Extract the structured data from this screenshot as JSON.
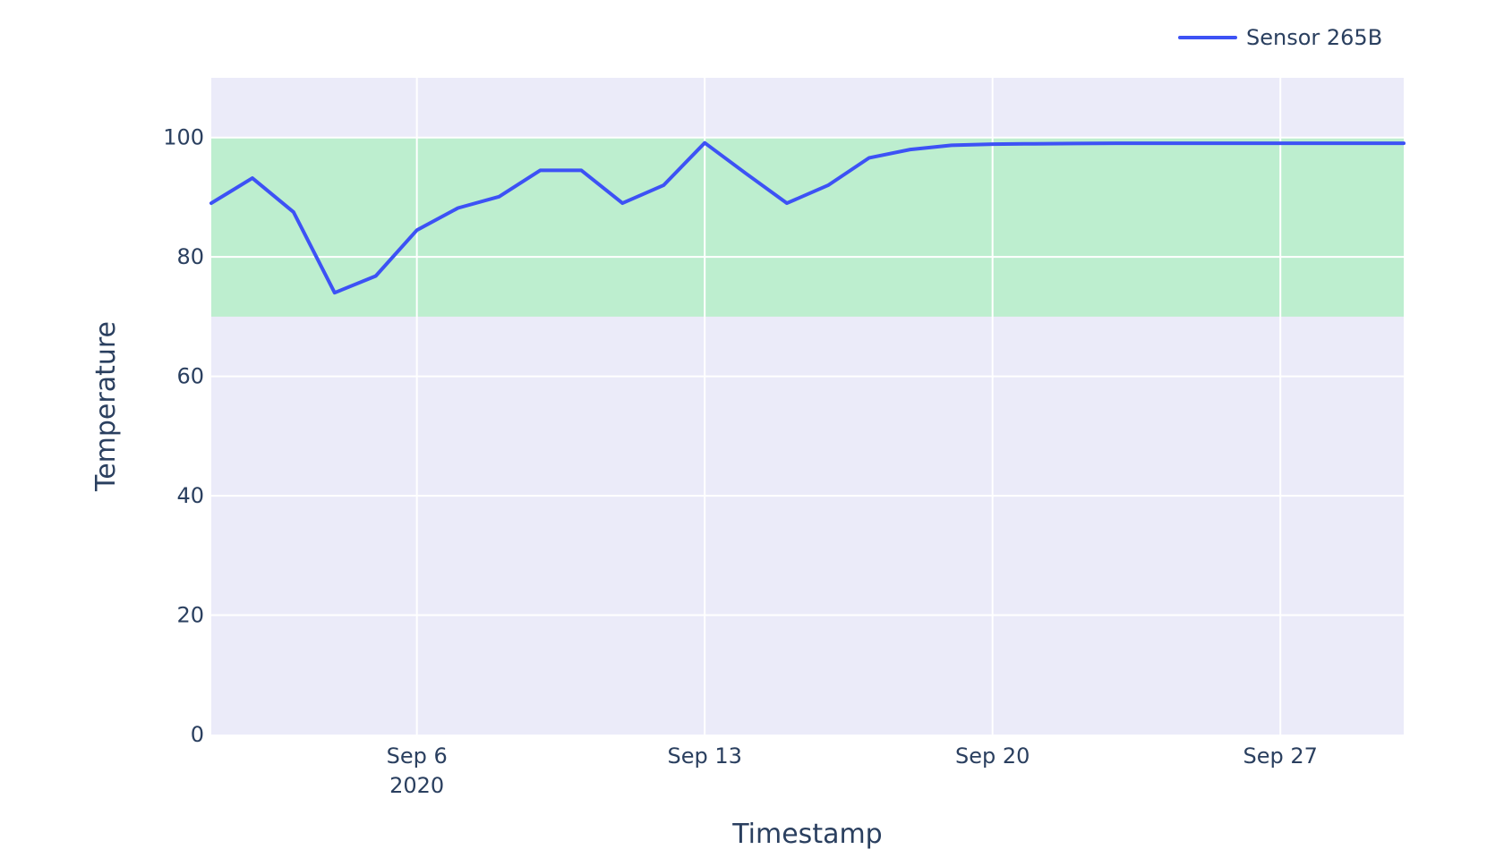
{
  "chart_data": {
    "type": "line",
    "title": "",
    "xlabel": "Timestamp",
    "ylabel": "Temperature",
    "ylim": [
      0,
      110
    ],
    "xlim": [
      "2020-09-01",
      "2020-09-30"
    ],
    "grid": true,
    "legend_position": "top-right",
    "yticks": [
      0,
      20,
      40,
      60,
      80,
      100
    ],
    "xticks": [
      {
        "date": "2020-09-06",
        "label": "Sep 6",
        "sublabel": "2020"
      },
      {
        "date": "2020-09-13",
        "label": "Sep 13",
        "sublabel": ""
      },
      {
        "date": "2020-09-20",
        "label": "Sep 20",
        "sublabel": ""
      },
      {
        "date": "2020-09-27",
        "label": "Sep 27",
        "sublabel": ""
      }
    ],
    "band": {
      "from": 70,
      "to": 100
    },
    "x": [
      "2020-09-01",
      "2020-09-02",
      "2020-09-03",
      "2020-09-04",
      "2020-09-05",
      "2020-09-06",
      "2020-09-07",
      "2020-09-08",
      "2020-09-09",
      "2020-09-10",
      "2020-09-11",
      "2020-09-12",
      "2020-09-13",
      "2020-09-14",
      "2020-09-15",
      "2020-09-16",
      "2020-09-17",
      "2020-09-18",
      "2020-09-19",
      "2020-09-20",
      "2020-09-21",
      "2020-09-22",
      "2020-09-23",
      "2020-09-24",
      "2020-09-25",
      "2020-09-26",
      "2020-09-27",
      "2020-09-28",
      "2020-09-29",
      "2020-09-30"
    ],
    "series": [
      {
        "name": "Sensor 265B",
        "color": "#3d52f5",
        "values": [
          89,
          93.2,
          87.5,
          74,
          76.8,
          84.5,
          88.2,
          90.1,
          94.5,
          94.5,
          89,
          92,
          99.1,
          94,
          89,
          92,
          96.6,
          98,
          98.7,
          98.9,
          98.95,
          99,
          99.05,
          99.05,
          99.05,
          99.05,
          99.05,
          99.05,
          99.05,
          99.05
        ]
      }
    ]
  },
  "colors": {
    "plot_bg": "#ebebf9",
    "band": "#bdeecf",
    "grid": "#ffffff",
    "text": "#2a3f5f"
  }
}
